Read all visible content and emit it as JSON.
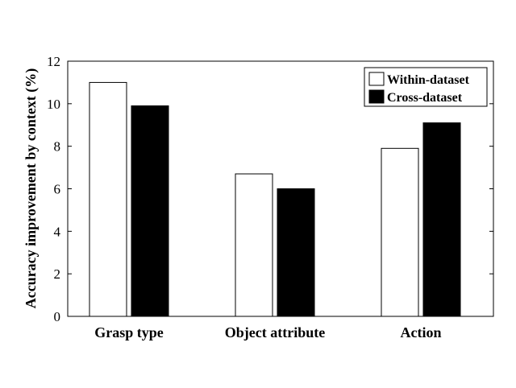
{
  "chart_data": {
    "type": "bar",
    "categories": [
      "Grasp type",
      "Object attribute",
      "Action"
    ],
    "series": [
      {
        "name": "Within-dataset",
        "values": [
          11.0,
          6.7,
          7.9
        ],
        "color": "#ffffff"
      },
      {
        "name": "Cross-dataset",
        "values": [
          9.9,
          6.0,
          9.1
        ],
        "color": "#000000"
      }
    ],
    "xlabel": "",
    "ylabel": "Accuracy improvement by context (%)",
    "ylim": [
      0,
      12
    ],
    "yticks": [
      0,
      2,
      4,
      6,
      8,
      10,
      12
    ],
    "legend_position": "top-right",
    "grid": false
  }
}
